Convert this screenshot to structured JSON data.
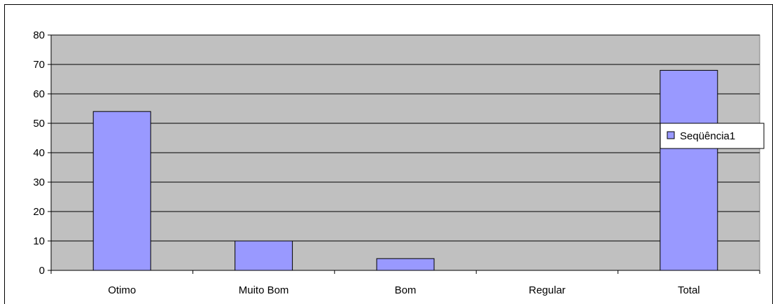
{
  "chart_data": {
    "type": "bar",
    "categories": [
      "Otimo",
      "Muito Bom",
      "Bom",
      "Regular",
      "Total"
    ],
    "series": [
      {
        "name": "Seqüência1",
        "values": [
          54,
          10,
          4,
          0,
          68
        ],
        "color": "#9999ff"
      }
    ],
    "title": "",
    "xlabel": "",
    "ylabel": "",
    "ylim": [
      0,
      80
    ],
    "yticks": [
      0,
      10,
      20,
      30,
      40,
      50,
      60,
      70,
      80
    ],
    "grid": true,
    "plot_background": "#c0c0c0",
    "legend_position": "right"
  }
}
